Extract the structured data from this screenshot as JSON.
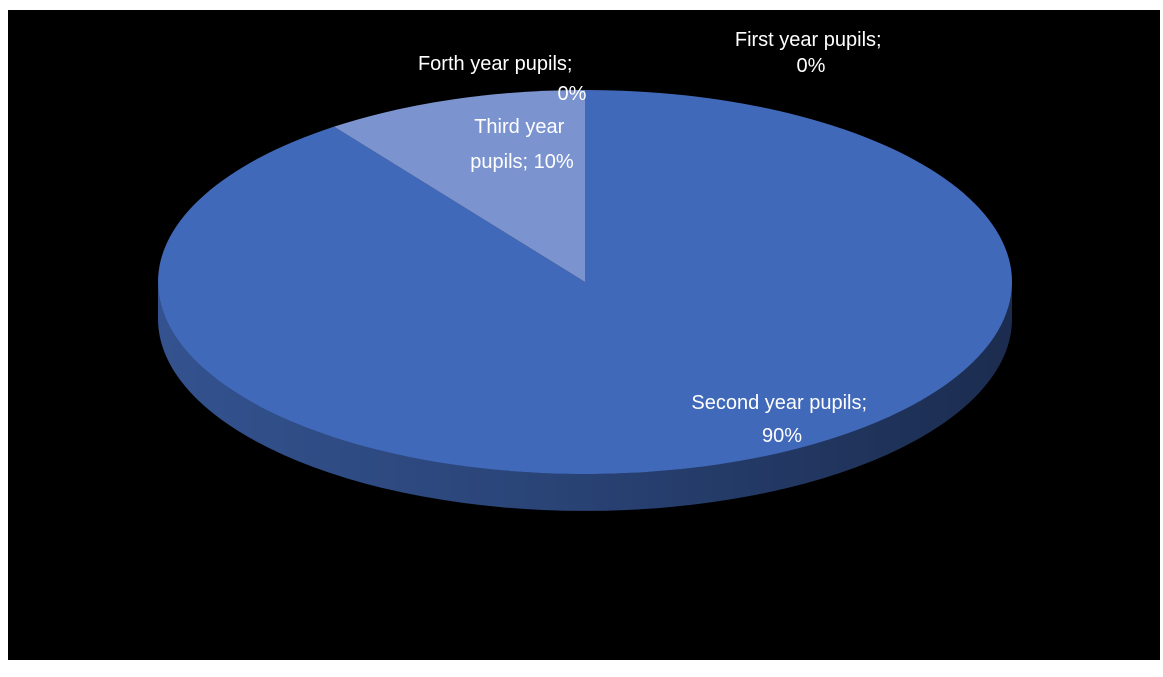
{
  "chart_data": {
    "type": "pie",
    "style": "3d",
    "background_color": "#000000",
    "label_color": "#ffffff",
    "slices": [
      {
        "name": "First year pupils",
        "value": 0,
        "label_line1": "First year pupils;",
        "label_line2": "0%",
        "color": "#4472C4"
      },
      {
        "name": "Second year pupils",
        "value": 90,
        "label_line1": "Second year pupils;",
        "label_line2": "90%",
        "color": "#4169B9"
      },
      {
        "name": "Third year pupils",
        "value": 10,
        "label_line1": "Third year",
        "label_line2": "pupils; 10%",
        "color": "#7B93CF"
      },
      {
        "name": "Forth year pupils",
        "value": 0,
        "label_line1": "Forth year pupils;",
        "label_line2": "0%",
        "color": "#4472C4"
      }
    ]
  }
}
